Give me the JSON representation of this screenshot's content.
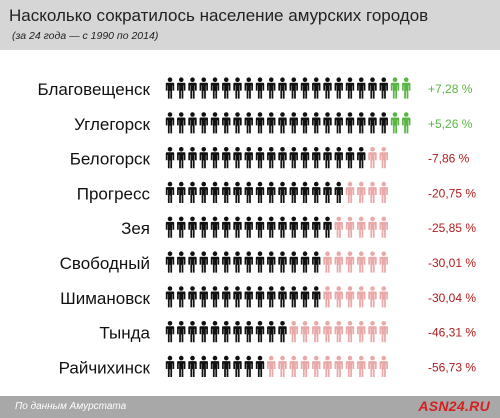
{
  "header": {
    "title": "Насколько сократилось население амурских городов",
    "subtitle": "(за 24 года — с 1990 по 2014)"
  },
  "footer": {
    "source": "По данным Амурстата",
    "brand": "ASN24.RU"
  },
  "colors": {
    "base": "#111111",
    "growth": "#5ab545",
    "loss": "#e9a9a9",
    "negative_label": "#b01c1c",
    "header_bg": "#d6d6d6",
    "footer_bg": "#a8a8a8",
    "brand": "#d42020"
  },
  "chart_data": {
    "type": "pictograph",
    "categories": [
      "Благовещенск",
      "Углегорск",
      "Белогорск",
      "Прогресс",
      "Зея",
      "Свободный",
      "Шимановск",
      "Тында",
      "Райчихинск"
    ],
    "values": [
      7.28,
      5.26,
      -7.86,
      -20.75,
      -25.85,
      -30.01,
      -30.04,
      -46.31,
      -56.73
    ],
    "value_labels": [
      "+7,28 %",
      "+5,26 %",
      "-7,86 %",
      "-20,75 %",
      "-25,85 %",
      "-30,01 %",
      "-30,04 %",
      "-46,31 %",
      "-56,73 %"
    ],
    "icons_per_100_percent": 20,
    "icon": "person-icon"
  }
}
